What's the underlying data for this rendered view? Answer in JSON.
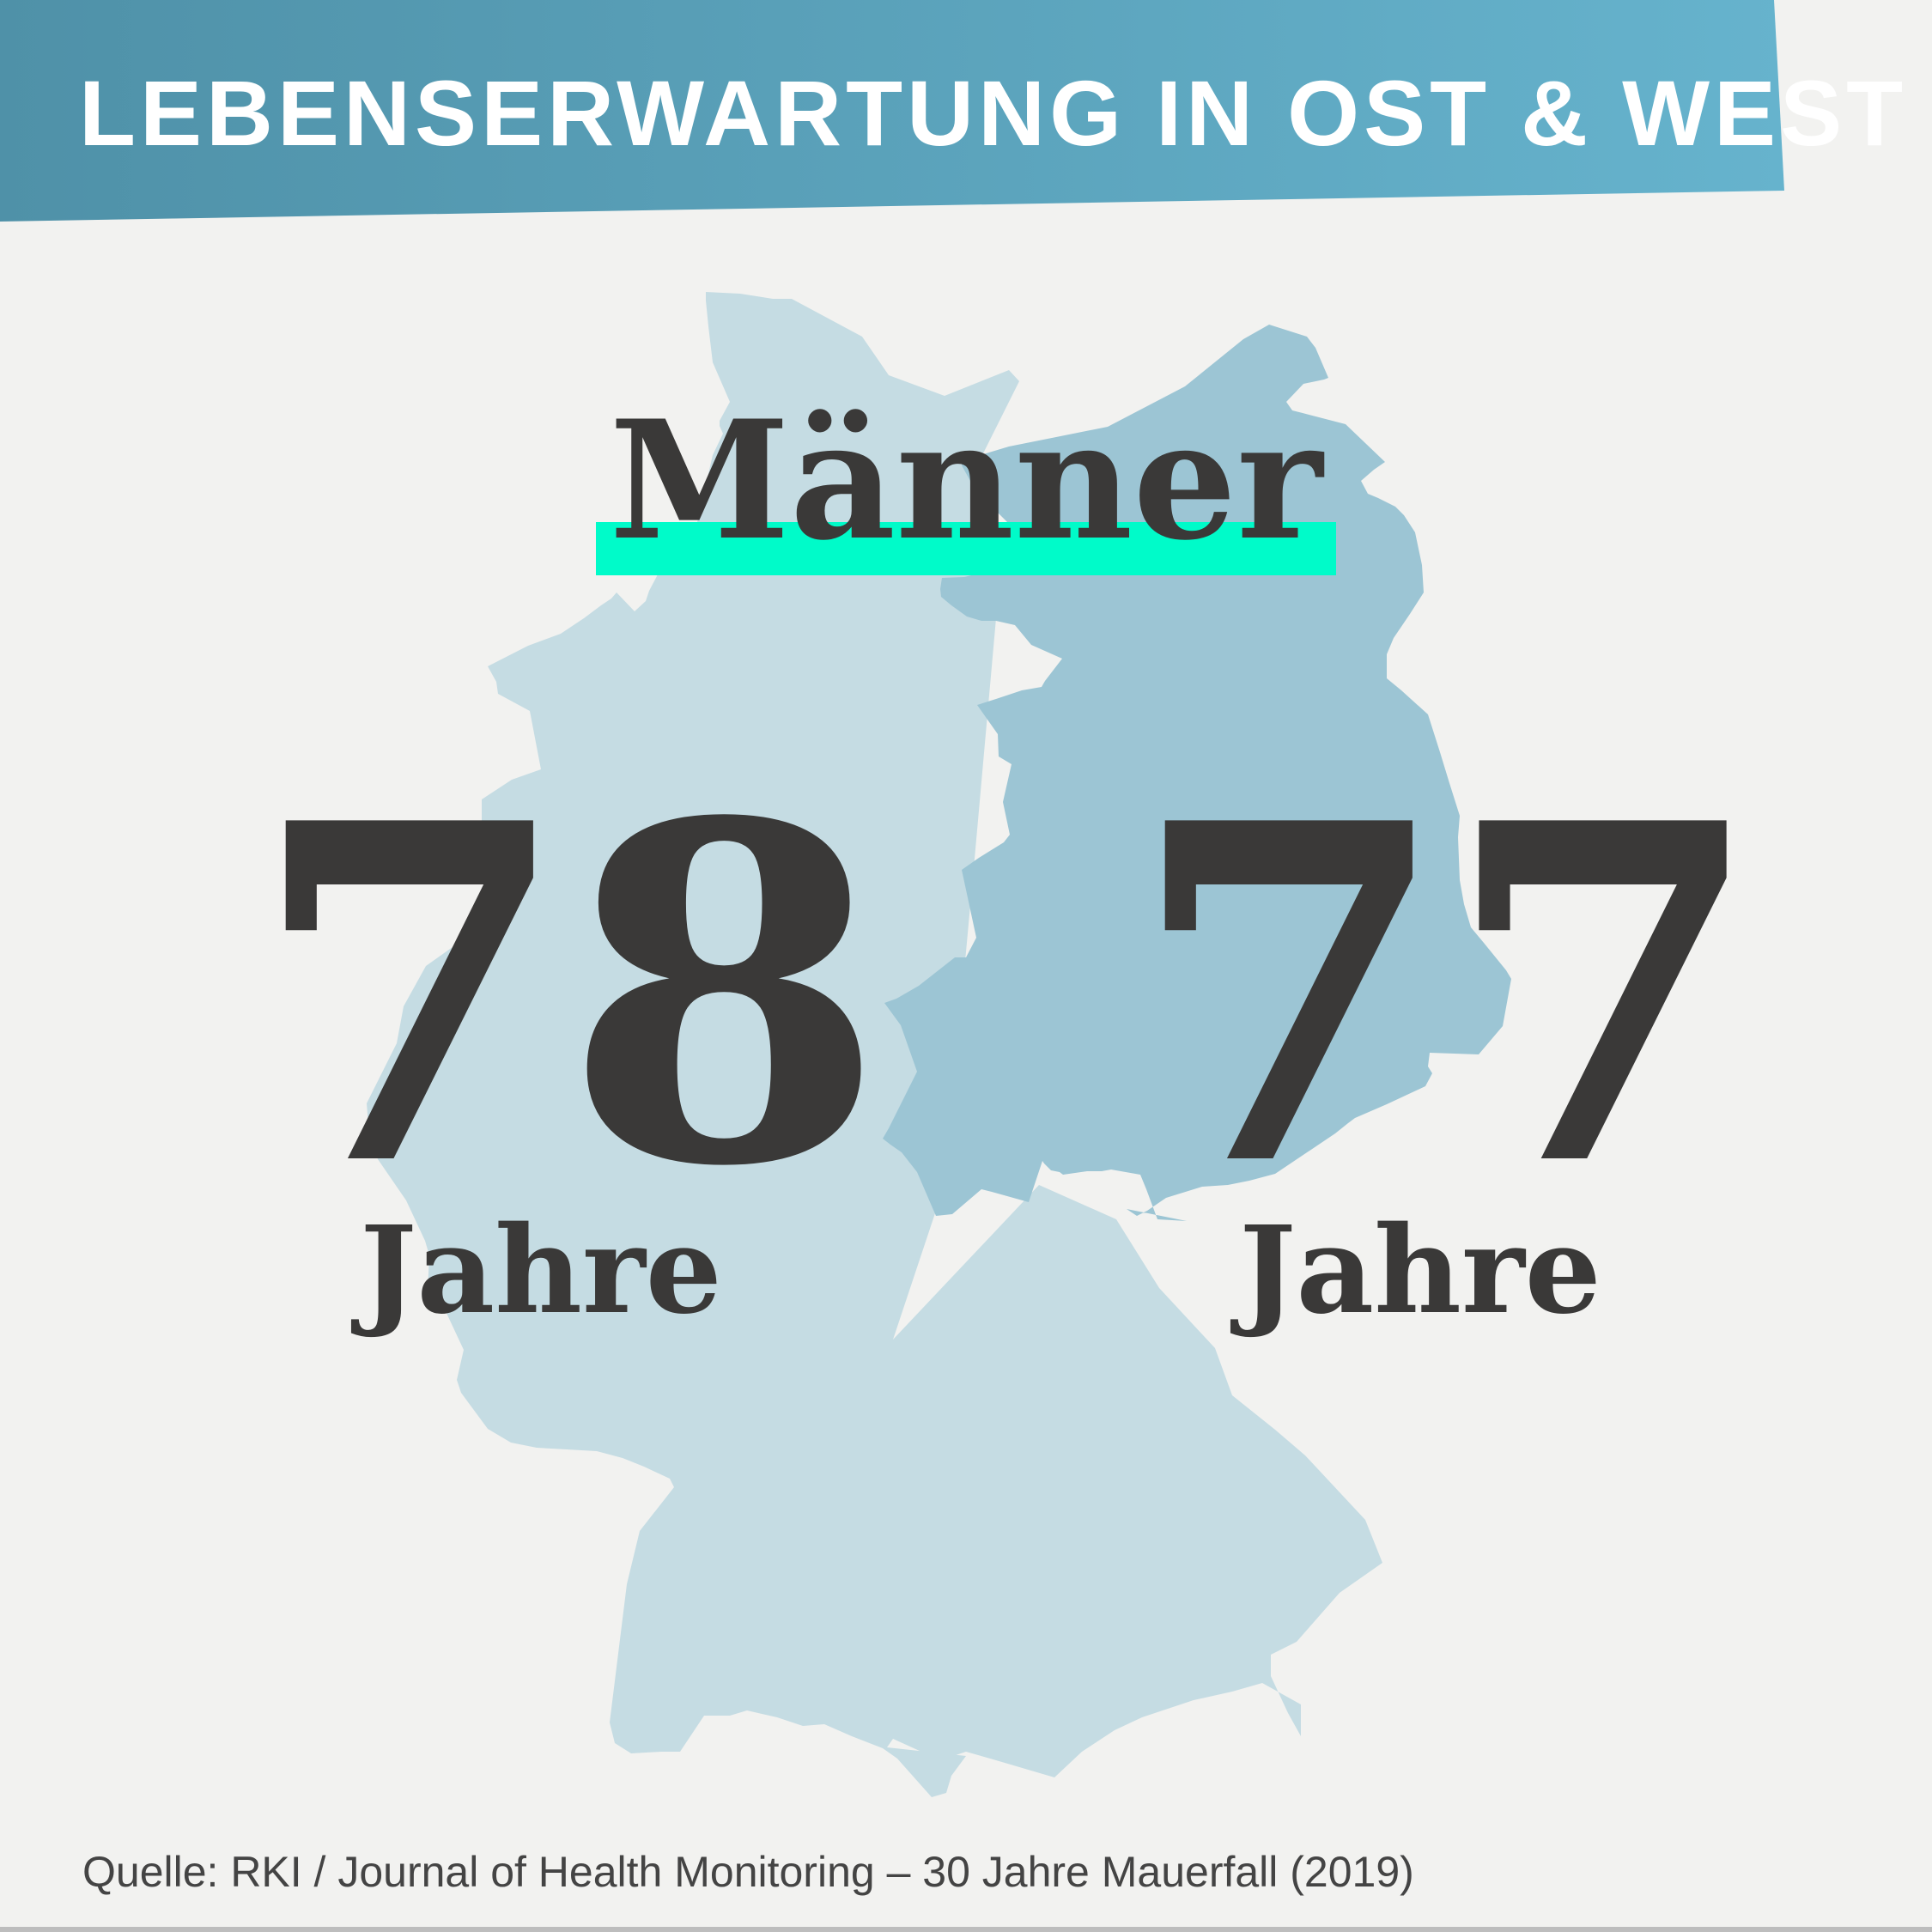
{
  "header": {
    "title": "LEBENSERWARTUNG IN OST & WEST"
  },
  "main": {
    "gender": "Männer",
    "west": {
      "value": "78",
      "unit": "Jahre"
    },
    "east": {
      "value": "77",
      "unit": "Jahre"
    }
  },
  "footer": {
    "source": "Quelle: RKI / Journal of Health Monitoring – 30 Jahre Mauerfall (2019)"
  },
  "colors": {
    "banner_start": "#4f91a8",
    "banner_end": "#66b3cd",
    "map_west": "#c5dce3",
    "map_east": "#9cc5d4",
    "highlight": "#00fbc9",
    "text_dark": "#3a3938",
    "background": "#f2f2f0"
  }
}
